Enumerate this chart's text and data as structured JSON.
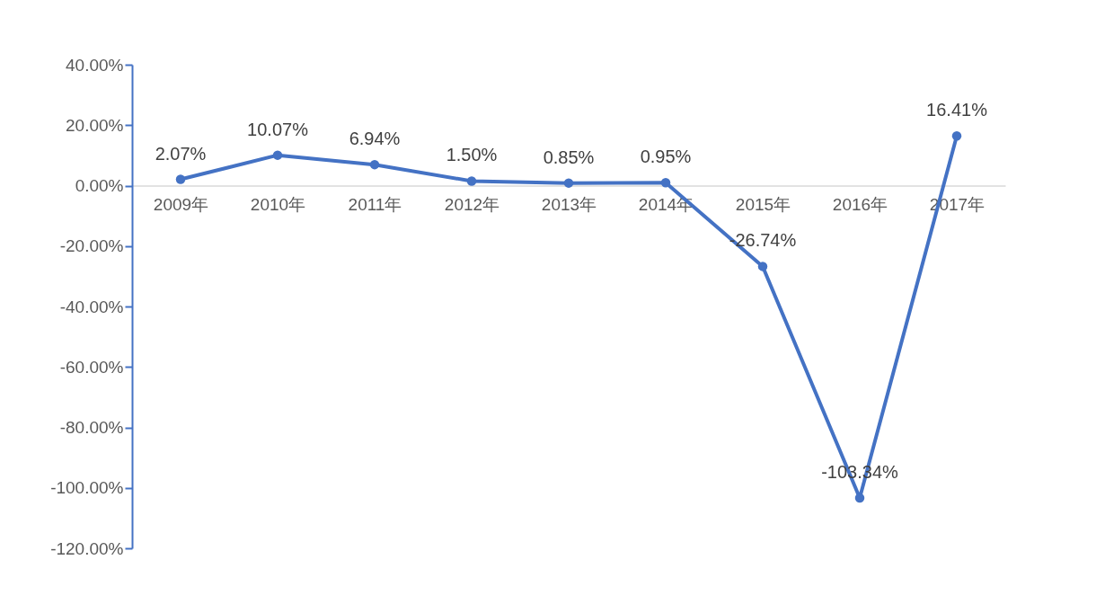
{
  "chart_data": {
    "type": "line",
    "categories": [
      "2009年",
      "2010年",
      "2011年",
      "2012年",
      "2013年",
      "2014年",
      "2015年",
      "2016年",
      "2017年"
    ],
    "series": [
      {
        "color": "#4472c4",
        "values": [
          2.07,
          10.07,
          6.94,
          1.5,
          0.85,
          0.95,
          -26.74,
          -103.34,
          16.41
        ]
      }
    ],
    "value_labels": [
      "2.07%",
      "10.07%",
      "6.94%",
      "1.50%",
      "0.85%",
      "0.95%",
      "-26.74%",
      "-103.34%",
      "16.41%"
    ],
    "ylim": [
      -120,
      40
    ],
    "yticks": [
      {
        "value": 40,
        "label": "40.00%"
      },
      {
        "value": 20,
        "label": "20.00%"
      },
      {
        "value": 0,
        "label": "0.00%"
      },
      {
        "value": -20,
        "label": "-20.00%"
      },
      {
        "value": -40,
        "label": "-40.00%"
      },
      {
        "value": -60,
        "label": "-60.00%"
      },
      {
        "value": -80,
        "label": "-80.00%"
      },
      {
        "value": -100,
        "label": "-100.00%"
      },
      {
        "value": -120,
        "label": "-120.00%"
      }
    ],
    "grid": false,
    "marker": "circle",
    "line_style": "solid"
  }
}
